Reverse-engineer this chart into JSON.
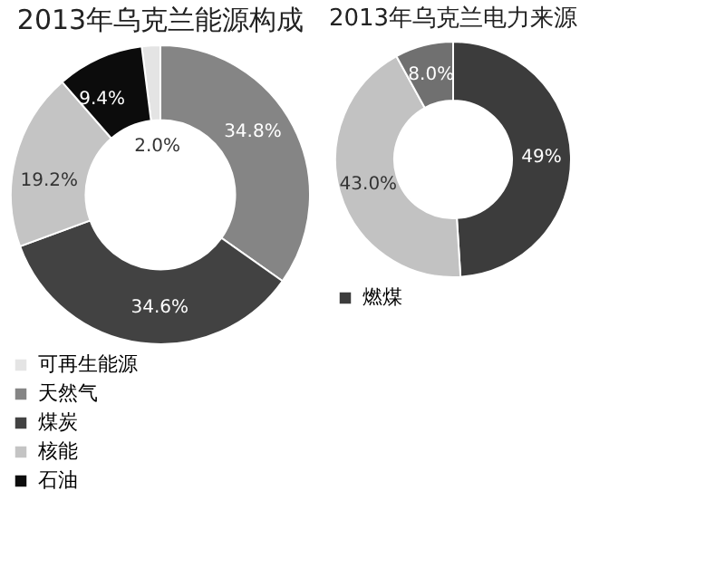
{
  "chart_data": [
    {
      "type": "donut",
      "title": "2013年乌克兰能源构成",
      "categories": [
        "可再生能源",
        "天然气",
        "煤炭",
        "核能",
        "石油"
      ],
      "values": [
        2.0,
        34.8,
        34.6,
        19.2,
        9.4
      ],
      "colors": [
        "#e4e4e4",
        "#858585",
        "#424242",
        "#c4c4c4",
        "#0c0c0c"
      ],
      "value_labels": [
        "2.0%",
        "34.8%",
        "34.6%",
        "19.2%",
        "9.4%"
      ],
      "legend": "bottom"
    },
    {
      "type": "donut",
      "title": "2013年乌克兰电力来源",
      "categories": [
        "燃煤",
        null,
        null
      ],
      "values": [
        49,
        43.0,
        8.0
      ],
      "colors": [
        "#3c3c3c",
        "#c2c2c2",
        "#707070"
      ],
      "value_labels": [
        "49%",
        "43.0%",
        "8.0%"
      ],
      "legend": "bottom"
    }
  ]
}
